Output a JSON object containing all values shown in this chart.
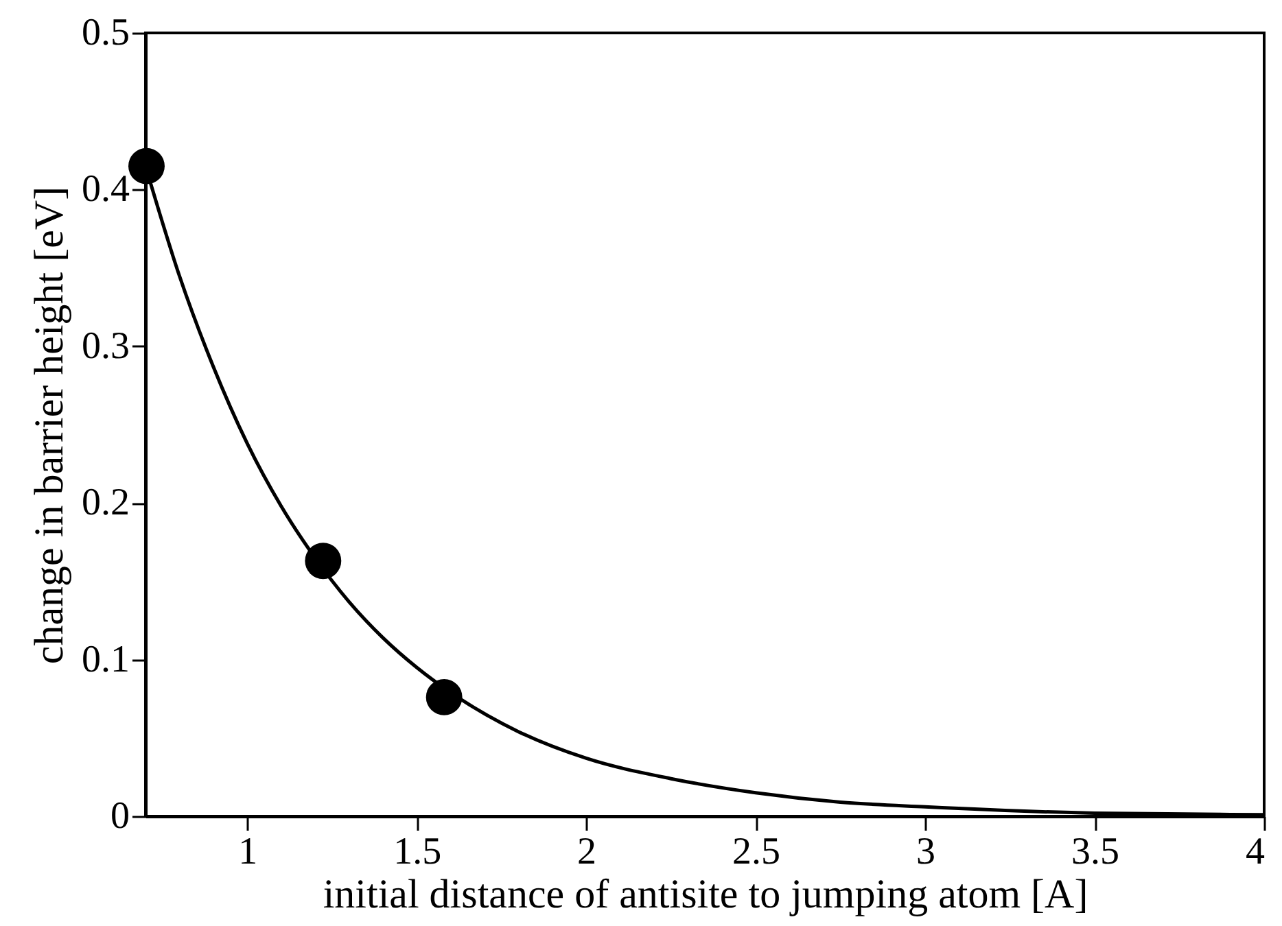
{
  "chart_data": {
    "type": "line",
    "xlabel": "initial distance of antisite to jumping atom [A]",
    "ylabel": "change in barrier height [eV]",
    "xlim": [
      0.7,
      4
    ],
    "xticks": [
      1,
      1.5,
      2,
      2.5,
      3,
      3.5,
      4
    ],
    "ylim": [
      0,
      0.5
    ],
    "yticks": [
      0,
      0.1,
      0.2,
      0.3,
      0.4,
      0.5
    ],
    "series": [
      {
        "color": "#000000",
        "line_style": "solid",
        "x": [
          0.7,
          0.8,
          0.9,
          1.0,
          1.1,
          1.2,
          1.3,
          1.4,
          1.5,
          1.6,
          1.8,
          2.0,
          2.25,
          2.5,
          2.75,
          3.0,
          3.5,
          4.0
        ],
        "values": [
          0.415,
          0.345,
          0.287,
          0.238,
          0.198,
          0.165,
          0.137,
          0.114,
          0.095,
          0.079,
          0.054,
          0.037,
          0.024,
          0.015,
          0.009,
          0.006,
          0.002,
          0.001
        ]
      },
      {
        "type": "scatter",
        "color": "#000000",
        "marker": "circle",
        "x": [
          0.703,
          1.224,
          1.581
        ],
        "values": [
          0.415,
          0.163,
          0.076
        ]
      }
    ]
  }
}
